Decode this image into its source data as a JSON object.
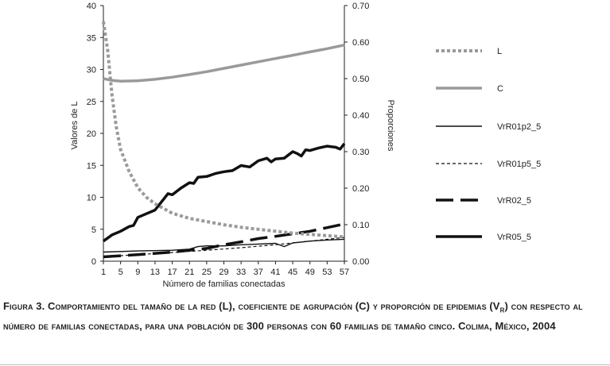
{
  "chart_data": {
    "type": "line",
    "x_ticks": [
      1,
      5,
      9,
      13,
      17,
      21,
      25,
      29,
      33,
      37,
      41,
      45,
      49,
      53,
      57
    ],
    "xlabel": "Número de familias conectadas",
    "ylabel_left": "Valores de L",
    "ylabel_right": "Proporciones",
    "ylim_left": [
      0,
      40
    ],
    "ylim_right": [
      0,
      0.7
    ],
    "left_ticks": [
      "0",
      "5",
      "10",
      "15",
      "20",
      "25",
      "30",
      "35",
      "40"
    ],
    "right_ticks": [
      "0.00",
      "0.10",
      "0.20",
      "0.30",
      "0.40",
      "0.50",
      "0.60",
      "0.70"
    ],
    "legend_position": "right",
    "series": [
      {
        "name": "L",
        "axis": "left",
        "style": "gray-dotted",
        "x": [
          1,
          2,
          3,
          4,
          5,
          7,
          9,
          11,
          13,
          17,
          21,
          25,
          29,
          33,
          37,
          41,
          45,
          49,
          53,
          57
        ],
        "values": [
          37.5,
          33.0,
          26.0,
          21.0,
          17.5,
          14.0,
          11.5,
          10.0,
          9.0,
          7.5,
          6.7,
          6.2,
          5.7,
          5.3,
          5.0,
          4.7,
          4.4,
          4.2,
          4.0,
          3.8
        ]
      },
      {
        "name": "C",
        "axis": "right",
        "style": "gray-solid",
        "x": [
          1,
          3,
          5,
          9,
          13,
          17,
          21,
          25,
          29,
          33,
          37,
          41,
          45,
          49,
          53,
          57
        ],
        "values": [
          0.5,
          0.495,
          0.493,
          0.494,
          0.498,
          0.504,
          0.511,
          0.519,
          0.528,
          0.537,
          0.546,
          0.555,
          0.564,
          0.573,
          0.582,
          0.592
        ]
      },
      {
        "name": "VrR01p2_5",
        "axis": "right",
        "style": "black-thin",
        "x": [
          1,
          9,
          17,
          21,
          23,
          25,
          29,
          33,
          37,
          41,
          43,
          45,
          49,
          53,
          57
        ],
        "values": [
          0.025,
          0.028,
          0.03,
          0.033,
          0.04,
          0.042,
          0.042,
          0.045,
          0.047,
          0.049,
          0.04,
          0.05,
          0.055,
          0.058,
          0.06
        ]
      },
      {
        "name": "VrR01p5_5",
        "axis": "right",
        "style": "black-dashed-thin",
        "x": [
          1,
          9,
          17,
          25,
          33,
          41,
          49,
          57
        ],
        "values": [
          0.012,
          0.018,
          0.024,
          0.03,
          0.037,
          0.045,
          0.055,
          0.065
        ]
      },
      {
        "name": "VrR02_5",
        "axis": "right",
        "style": "black-long-dash",
        "x": [
          1,
          9,
          17,
          25,
          29,
          33,
          37,
          41,
          45,
          49,
          53,
          57
        ],
        "values": [
          0.012,
          0.018,
          0.025,
          0.035,
          0.045,
          0.053,
          0.062,
          0.068,
          0.075,
          0.082,
          0.092,
          0.102
        ]
      },
      {
        "name": "VrR05_5",
        "axis": "right",
        "style": "black-thick",
        "x": [
          1,
          3,
          5,
          7,
          8,
          9,
          11,
          13,
          15,
          16,
          17,
          19,
          21,
          22,
          23,
          25,
          27,
          29,
          31,
          33,
          35,
          37,
          39,
          40,
          41,
          43,
          45,
          46,
          47,
          48,
          49,
          51,
          53,
          55,
          56,
          57
        ],
        "values": [
          0.055,
          0.072,
          0.082,
          0.095,
          0.098,
          0.12,
          0.13,
          0.14,
          0.17,
          0.185,
          0.182,
          0.2,
          0.215,
          0.213,
          0.23,
          0.232,
          0.24,
          0.245,
          0.248,
          0.262,
          0.258,
          0.275,
          0.282,
          0.272,
          0.28,
          0.282,
          0.3,
          0.295,
          0.288,
          0.305,
          0.303,
          0.31,
          0.315,
          0.312,
          0.307,
          0.322
        ]
      }
    ]
  },
  "caption": {
    "text": "Figura 3. Comportamiento del tamaño de la red (L), coeficiente de agrupación (C) y proporción de epidemias (V",
    "subscript": "r",
    "text_end": ") con respecto al número de familias conectadas, para una población de 300 personas con 60 familias de tamaño cinco. Colima, México, 2004"
  }
}
